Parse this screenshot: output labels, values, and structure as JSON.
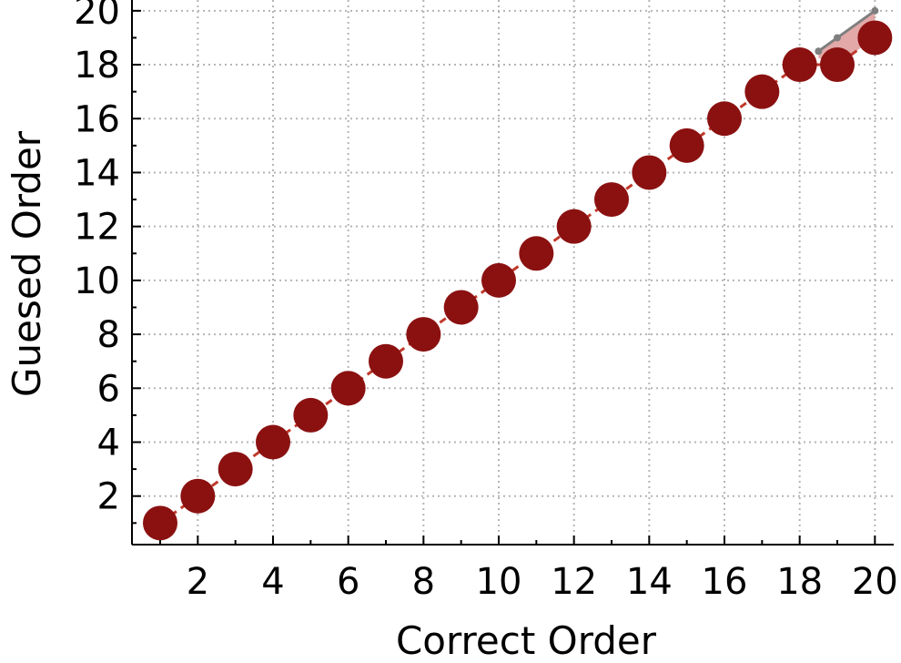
{
  "chart_data": {
    "type": "scatter",
    "xlabel": "Correct Order",
    "ylabel": "Guesed Order",
    "xlim": [
      0.25,
      20.5
    ],
    "ylim": [
      0.2,
      20.4
    ],
    "xticks": [
      2,
      4,
      6,
      8,
      10,
      12,
      14,
      16,
      18,
      20
    ],
    "yticks": [
      2,
      4,
      6,
      8,
      10,
      12,
      14,
      16,
      18,
      20
    ],
    "x_tick_labels": [
      "2",
      "4",
      "6",
      "8",
      "10",
      "12",
      "14",
      "16",
      "18",
      "20"
    ],
    "y_tick_labels": [
      "2",
      "4",
      "6",
      "8",
      "10",
      "12",
      "14",
      "16",
      "18",
      "20"
    ],
    "grid": true,
    "series": [
      {
        "color": "#8b1111",
        "x": [
          1,
          2,
          3,
          4,
          5,
          6,
          7,
          8,
          9,
          10,
          11,
          12,
          13,
          14,
          15,
          16,
          17,
          18,
          19,
          20
        ],
        "y": [
          1,
          2,
          3,
          4,
          5,
          6,
          7,
          8,
          9,
          10,
          11,
          12,
          13,
          14,
          15,
          16,
          17,
          18,
          18,
          19
        ]
      },
      {
        "color": "#7f7f7f",
        "x": [
          18.5,
          19,
          20
        ],
        "y": [
          18.5,
          19,
          20
        ]
      }
    ],
    "colors": {
      "points": "#8b1111",
      "dashed_line": "#c0392b",
      "reference_line": "#7f7f7f",
      "shade": "#d98c8c",
      "grid": "#b5b5b5"
    }
  }
}
